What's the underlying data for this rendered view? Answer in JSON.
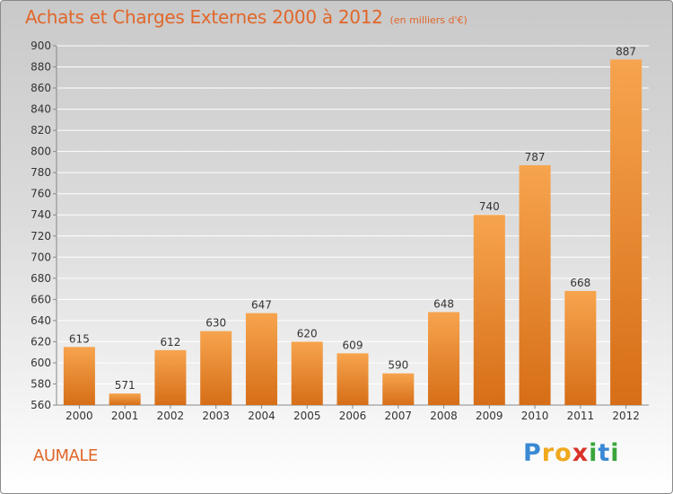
{
  "header": {
    "title": "Achats et Charges Externes 2000 à 2012",
    "subtitle": "(en milliers d'€)"
  },
  "footer": {
    "city": "AUMALE",
    "logo_text": "Proxiti"
  },
  "colors": {
    "accent": "#e0672a",
    "bar_top": "#f7a44e",
    "bar_bottom": "#d66e17",
    "grid": "#ffffff"
  },
  "chart_data": {
    "type": "bar",
    "title": "Achats et Charges Externes 2000 à 2012",
    "subtitle": "(en milliers d'€)",
    "categories": [
      "2000",
      "2001",
      "2002",
      "2003",
      "2004",
      "2005",
      "2006",
      "2007",
      "2008",
      "2009",
      "2010",
      "2011",
      "2012"
    ],
    "values": [
      615,
      571,
      612,
      630,
      647,
      620,
      609,
      590,
      648,
      740,
      787,
      668,
      887
    ],
    "ylim": [
      560,
      900
    ],
    "yticks": [
      560,
      580,
      600,
      620,
      640,
      660,
      680,
      700,
      720,
      740,
      760,
      780,
      800,
      820,
      840,
      860,
      880,
      900
    ],
    "grid": true,
    "data_labels": true
  }
}
